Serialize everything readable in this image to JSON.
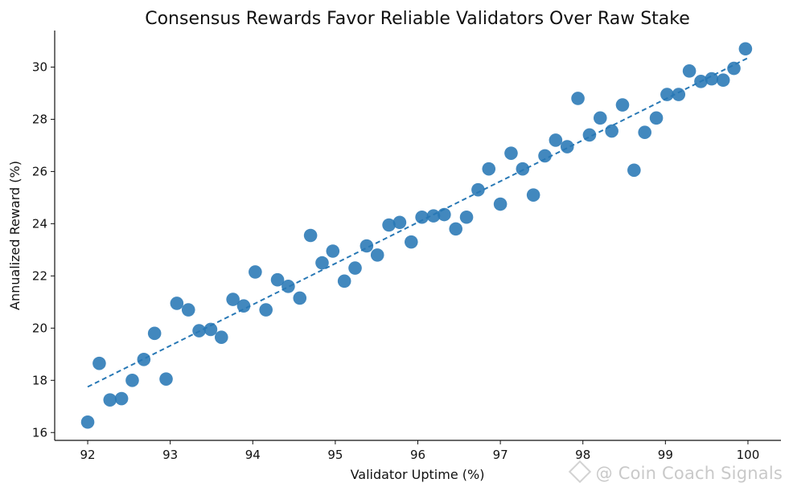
{
  "chart_data": {
    "type": "scatter",
    "title": "Consensus Rewards Favor Reliable Validators Over Raw Stake",
    "xlabel": "Validator Uptime (%)",
    "ylabel": "Annualized Reward (%)",
    "xlim": [
      91.6,
      100.4
    ],
    "ylim": [
      15.7,
      31.4
    ],
    "xticks": [
      92,
      93,
      94,
      95,
      96,
      97,
      98,
      99,
      100
    ],
    "yticks": [
      16,
      18,
      20,
      22,
      24,
      26,
      28,
      30
    ],
    "grid": false,
    "point_color": "#2878b5",
    "trend_color": "#2878b5",
    "x": [
      92.0,
      92.14,
      92.27,
      92.41,
      92.54,
      92.68,
      92.81,
      92.95,
      93.08,
      93.22,
      93.35,
      93.49,
      93.62,
      93.76,
      93.89,
      94.03,
      94.16,
      94.3,
      94.43,
      94.57,
      94.7,
      94.84,
      94.97,
      95.11,
      95.24,
      95.38,
      95.51,
      95.65,
      95.78,
      95.92,
      96.05,
      96.19,
      96.32,
      96.46,
      96.59,
      96.73,
      96.86,
      97.0,
      97.13,
      97.27,
      97.4,
      97.54,
      97.67,
      97.81,
      97.94,
      98.08,
      98.21,
      98.35,
      98.48,
      98.62,
      98.75,
      98.89,
      99.02,
      99.16,
      99.29,
      99.43,
      99.56,
      99.7,
      99.83,
      99.97
    ],
    "y": [
      16.4,
      18.65,
      17.25,
      17.3,
      18.0,
      18.8,
      19.8,
      18.05,
      20.95,
      20.7,
      19.9,
      19.95,
      19.65,
      21.1,
      20.85,
      22.15,
      20.7,
      21.85,
      21.6,
      21.15,
      23.55,
      22.5,
      22.95,
      21.8,
      22.3,
      23.15,
      22.8,
      23.95,
      24.05,
      23.3,
      24.25,
      24.3,
      24.35,
      23.8,
      24.25,
      25.3,
      26.1,
      24.75,
      26.7,
      26.1,
      25.1,
      26.6,
      27.2,
      26.95,
      28.8,
      27.4,
      28.05,
      27.55,
      28.55,
      26.05,
      27.5,
      28.05,
      28.95,
      28.95,
      29.85,
      29.45,
      29.55,
      29.5,
      29.95,
      30.7
    ],
    "trend": {
      "x": [
        92.0,
        100.0
      ],
      "y": [
        17.75,
        30.35
      ]
    }
  },
  "watermark": {
    "text": "@ Coin Coach Signals"
  }
}
